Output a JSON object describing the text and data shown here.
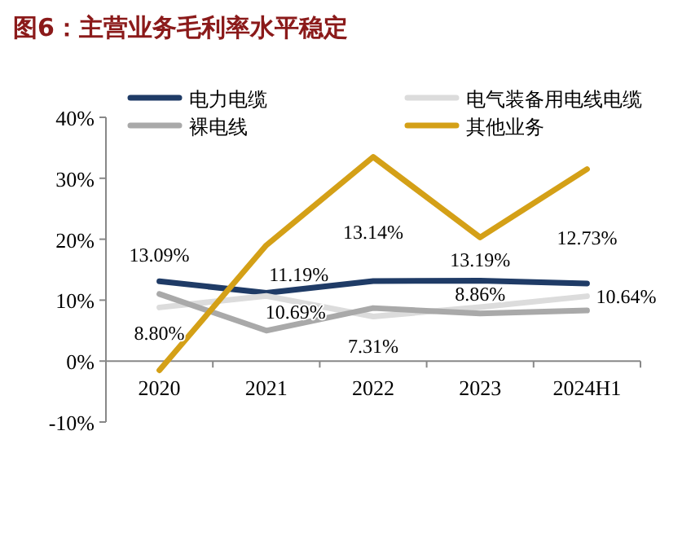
{
  "chart_data": {
    "type": "line",
    "title": "图6：主营业务毛利率水平稳定",
    "categories": [
      "2020",
      "2021",
      "2022",
      "2023",
      "2024H1"
    ],
    "series": [
      {
        "name": "电力电缆",
        "color": "#1f3b66",
        "values": [
          13.09,
          11.19,
          13.14,
          13.19,
          12.73
        ],
        "value_labels": [
          "13.09%",
          "11.19%",
          "13.14%",
          "13.19%",
          "12.73%"
        ]
      },
      {
        "name": "电气装备用电线电缆",
        "color": "#dcdcdc",
        "values": [
          8.8,
          10.69,
          7.31,
          8.86,
          10.64
        ],
        "value_labels": [
          "8.80%",
          "10.69%",
          "7.31%",
          "8.86%",
          "10.64%"
        ]
      },
      {
        "name": "裸电线",
        "color": "#a9a9a9",
        "values": [
          11,
          5,
          8.7,
          7.8,
          8.3
        ]
      },
      {
        "name": "其他业务",
        "color": "#d4a017",
        "values": [
          -1.5,
          19,
          33.5,
          20.3,
          31.5
        ]
      }
    ],
    "ylim": [
      -10,
      40
    ],
    "yticks": [
      {
        "value": -10,
        "label": "-10%"
      },
      {
        "value": 0,
        "label": "0%"
      },
      {
        "value": 10,
        "label": "10%"
      },
      {
        "value": 20,
        "label": "20%"
      },
      {
        "value": 30,
        "label": "30%"
      },
      {
        "value": 40,
        "label": "40%"
      }
    ],
    "legend": "top",
    "grid": false,
    "marker": "none",
    "line_style": "solid"
  }
}
